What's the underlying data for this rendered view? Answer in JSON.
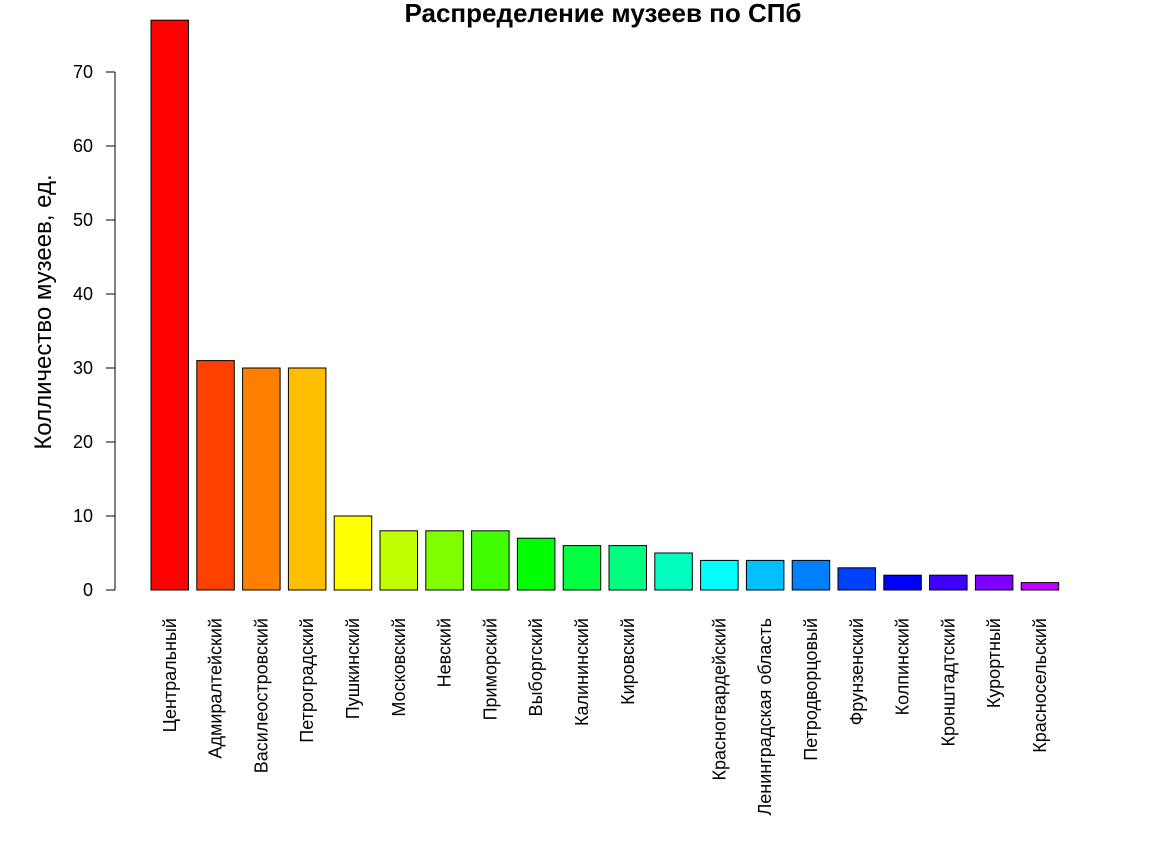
{
  "chart_data": {
    "type": "bar",
    "title": "Распределение музеев по СПб",
    "xlabel": "",
    "ylabel": "Колличество музеев, ед.",
    "ylim": [
      0,
      77
    ],
    "yticks": [
      0,
      10,
      20,
      30,
      40,
      50,
      60,
      70
    ],
    "grid": false,
    "categories": [
      "Центральный",
      "Адмиралтейский",
      "Василеостровский",
      "Петроградский",
      "Пушкинский",
      "Московский",
      "Невский",
      "Приморский",
      "Выборгский",
      "Калининский",
      "Кировский",
      "",
      "Красногвардейский",
      "Ленинградская область",
      "Петродворцовый",
      "Фрунзенский",
      "Колпинский",
      "Кронштадтский",
      "Курортный",
      "Красносельский"
    ],
    "values": [
      77,
      31,
      30,
      30,
      10,
      8,
      8,
      8,
      7,
      6,
      6,
      5,
      4,
      4,
      4,
      3,
      2,
      2,
      2,
      1
    ],
    "colors": [
      "#FF0000",
      "#FF4000",
      "#FF8000",
      "#FFBF00",
      "#FFFF00",
      "#BFFF00",
      "#80FF00",
      "#40FF00",
      "#00FF00",
      "#00FF40",
      "#00FF80",
      "#00FFBF",
      "#00FFFF",
      "#00BFFF",
      "#0080FF",
      "#0040FF",
      "#0000FF",
      "#4000FF",
      "#8000FF",
      "#BF00FF"
    ]
  }
}
